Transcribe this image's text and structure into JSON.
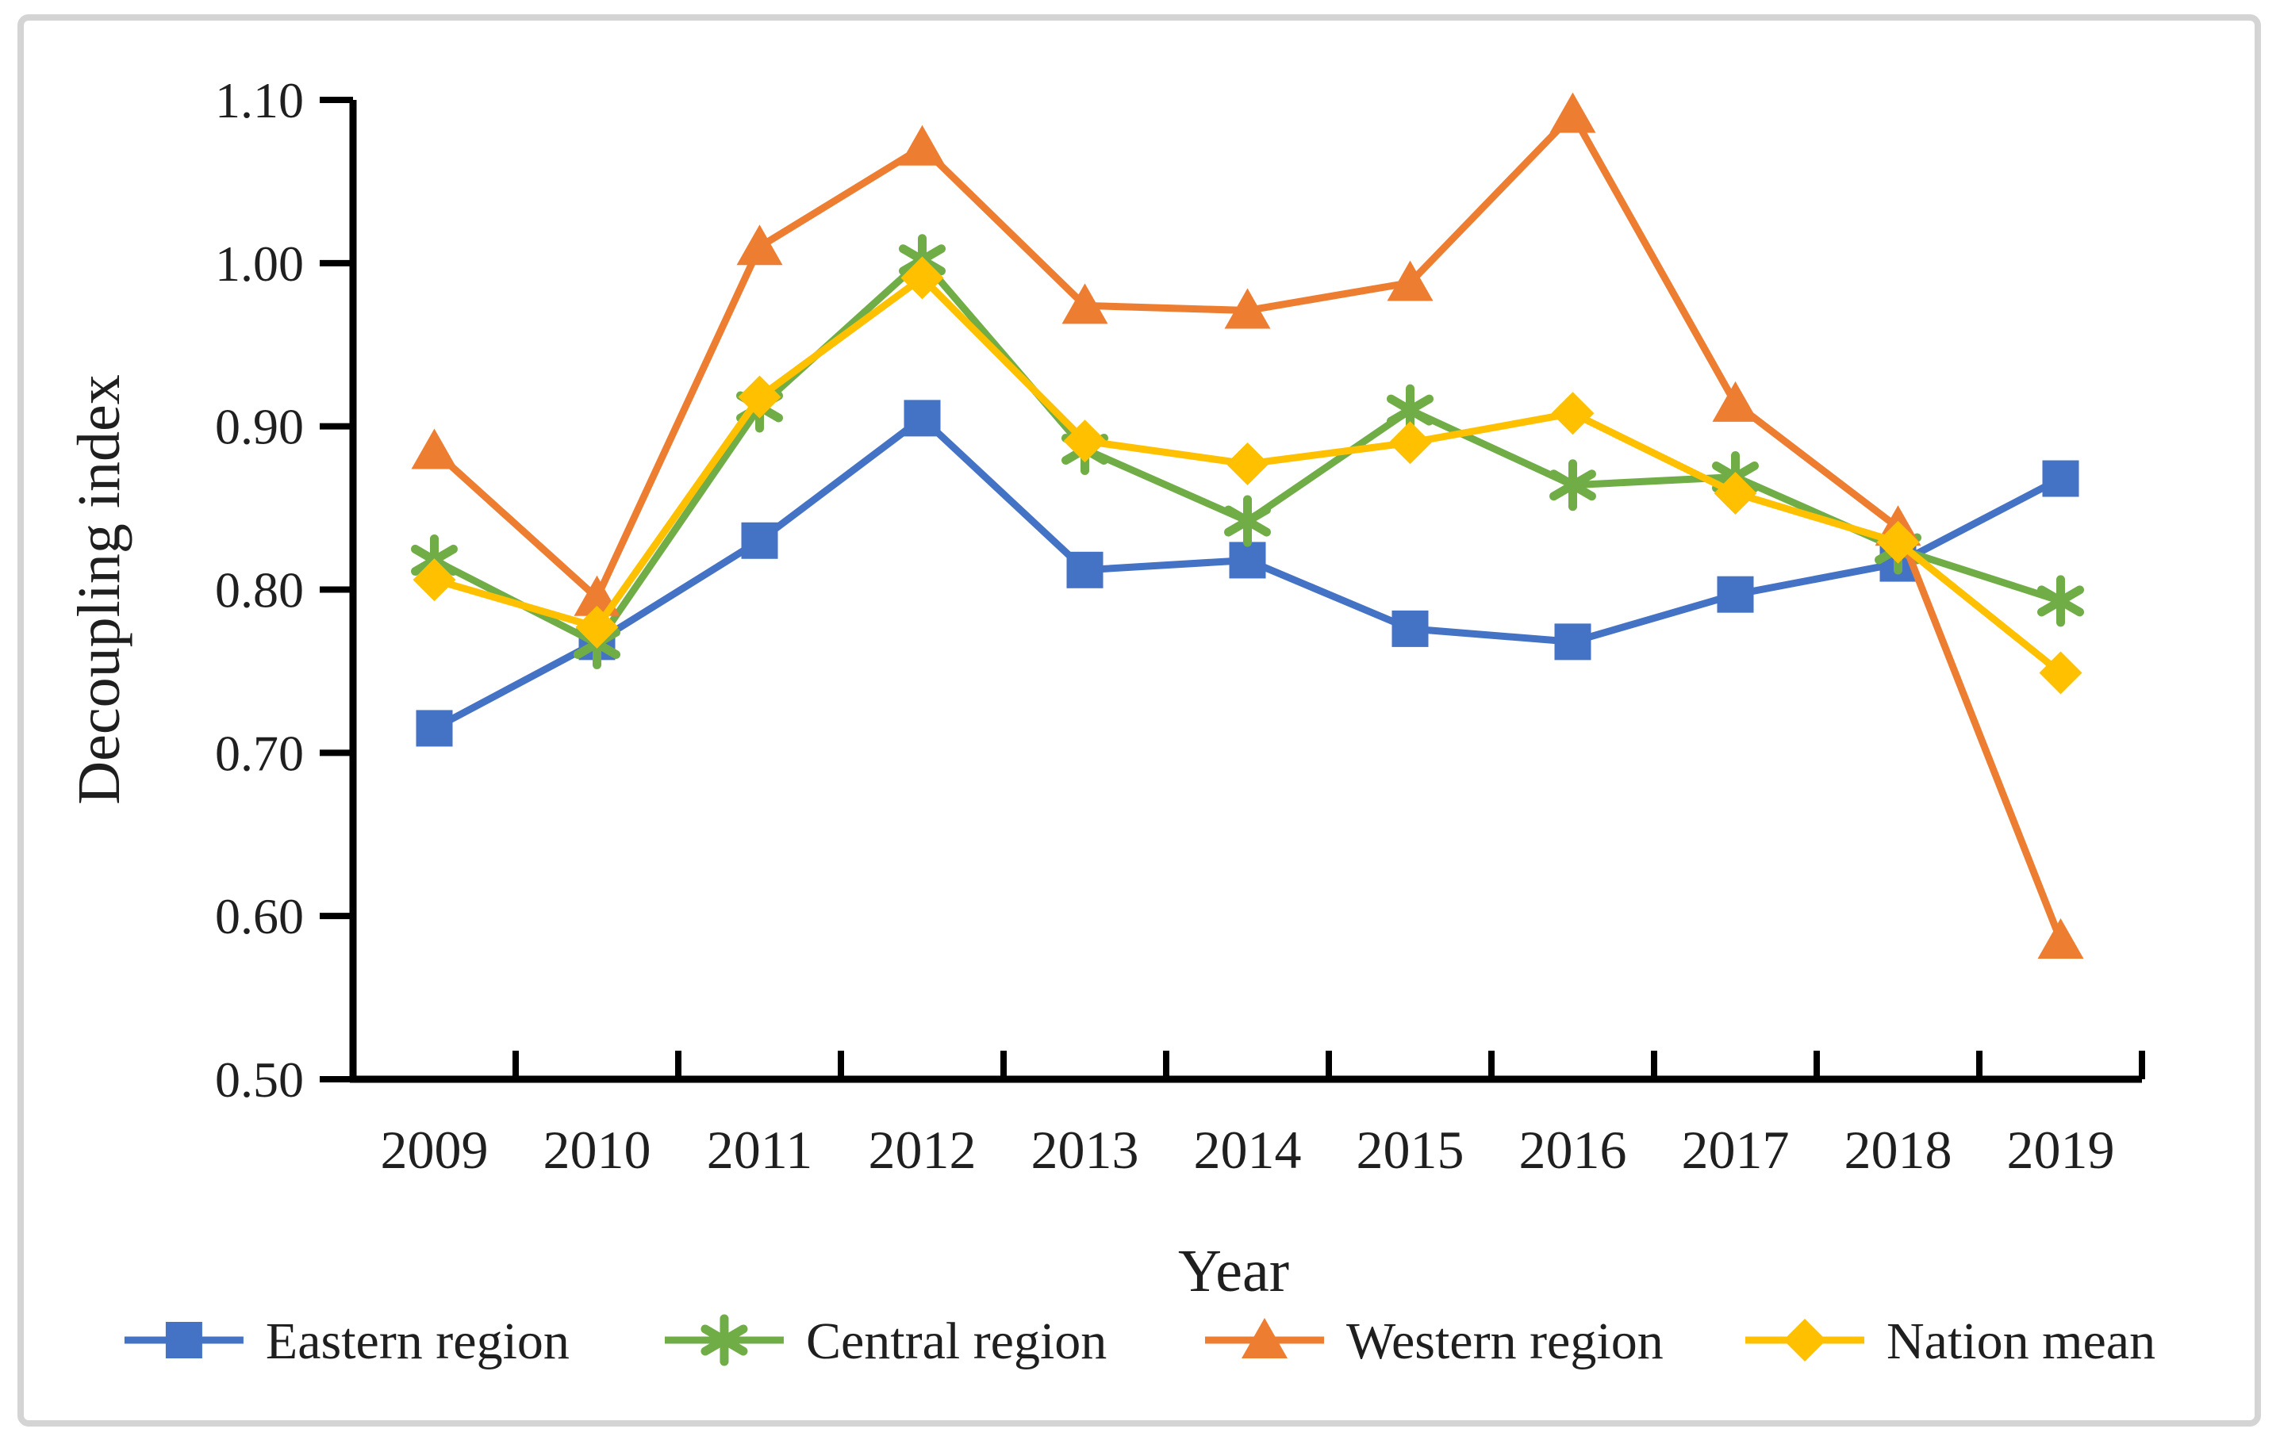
{
  "page": {
    "background": "#ffffff",
    "border_color": "#d4d4d4"
  },
  "chart_data": {
    "type": "line",
    "title": "",
    "xlabel": "Year",
    "ylabel": "Decoupling index",
    "categories": [
      "2009",
      "2010",
      "2011",
      "2012",
      "2013",
      "2014",
      "2015",
      "2016",
      "2017",
      "2018",
      "2019"
    ],
    "y_axis": {
      "min": 0.5,
      "max": 1.1,
      "step": 0.1,
      "tick_labels": [
        "0.50",
        "0.60",
        "0.70",
        "0.80",
        "0.90",
        "1.00",
        "1.10"
      ]
    },
    "grid": false,
    "legend_position": "bottom",
    "axis_color": "#000000",
    "text_color": "#1f1f1f",
    "series": [
      {
        "name": "Eastern region",
        "color": "#4472C4",
        "marker": "square",
        "values": [
          0.715,
          0.768,
          0.83,
          0.905,
          0.812,
          0.818,
          0.776,
          0.768,
          0.797,
          0.816,
          0.868
        ]
      },
      {
        "name": "Central region",
        "color": "#70AD47",
        "marker": "asterisk",
        "values": [
          0.818,
          0.767,
          0.912,
          1.002,
          0.886,
          0.842,
          0.91,
          0.864,
          0.869,
          0.825,
          0.793
        ]
      },
      {
        "name": "Western region",
        "color": "#ED7D31",
        "marker": "triangle",
        "values": [
          0.885,
          0.795,
          1.01,
          1.071,
          0.974,
          0.971,
          0.988,
          1.091,
          0.914,
          0.838,
          0.585
        ]
      },
      {
        "name": "Nation mean",
        "color": "#FFC000",
        "marker": "diamond",
        "values": [
          0.806,
          0.777,
          0.918,
          0.991,
          0.891,
          0.877,
          0.89,
          0.908,
          0.859,
          0.829,
          0.749
        ]
      }
    ]
  }
}
